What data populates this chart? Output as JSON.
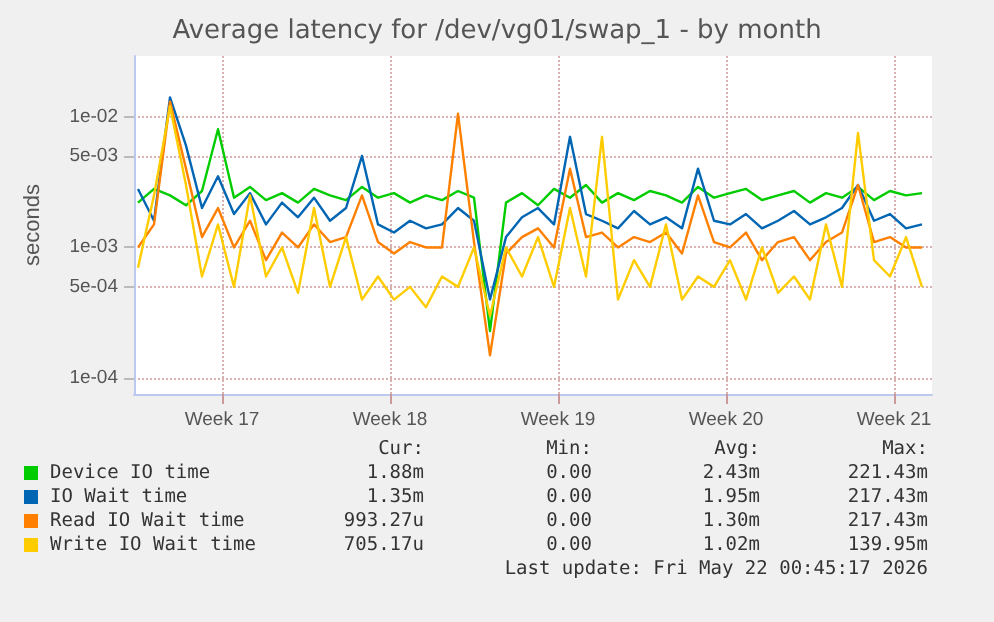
{
  "chart_data": {
    "type": "line",
    "title": "Average latency for /dev/vg01/swap_1 - by month",
    "ylabel": "seconds",
    "log": "y",
    "grid": true,
    "legend": "bottom",
    "marker": "none",
    "line_style": "solid",
    "xlim": [
      "2026-04-19T20:00",
      "2026-05-23T02:00"
    ],
    "xticks": [
      {
        "value": "2026-04-23T12:00",
        "label": "Week 17"
      },
      {
        "value": "2026-04-30T12:00",
        "label": "Week 18"
      },
      {
        "value": "2026-05-07T12:00",
        "label": "Week 19"
      },
      {
        "value": "2026-05-14T12:00",
        "label": "Week 20"
      },
      {
        "value": "2026-05-21T12:00",
        "label": "Week 21"
      }
    ],
    "ylim": [
      7.6e-05,
      0.029
    ],
    "yticks": [
      {
        "value": 0.0001,
        "label": "1e-04"
      },
      {
        "value": 0.0005,
        "label": "5e-04"
      },
      {
        "value": 0.001,
        "label": "1e-03"
      },
      {
        "value": 0.005,
        "label": "5e-03"
      },
      {
        "value": 0.01,
        "label": "1e-02"
      }
    ],
    "x": [
      "2026-04-20T00:00",
      "2026-04-20T16:00",
      "2026-04-21T08:00",
      "2026-04-22T00:00",
      "2026-04-22T16:00",
      "2026-04-23T08:00",
      "2026-04-24T00:00",
      "2026-04-24T16:00",
      "2026-04-25T08:00",
      "2026-04-26T00:00",
      "2026-04-26T16:00",
      "2026-04-27T08:00",
      "2026-04-28T00:00",
      "2026-04-28T16:00",
      "2026-04-29T08:00",
      "2026-04-30T00:00",
      "2026-04-30T16:00",
      "2026-05-01T08:00",
      "2026-05-02T00:00",
      "2026-05-02T16:00",
      "2026-05-03T08:00",
      "2026-05-04T00:00",
      "2026-05-04T16:00",
      "2026-05-05T08:00",
      "2026-05-06T00:00",
      "2026-05-06T16:00",
      "2026-05-07T08:00",
      "2026-05-08T00:00",
      "2026-05-08T16:00",
      "2026-05-09T08:00",
      "2026-05-10T00:00",
      "2026-05-10T16:00",
      "2026-05-11T08:00",
      "2026-05-12T00:00",
      "2026-05-12T16:00",
      "2026-05-13T08:00",
      "2026-05-14T00:00",
      "2026-05-14T16:00",
      "2026-05-15T08:00",
      "2026-05-16T00:00",
      "2026-05-16T16:00",
      "2026-05-17T08:00",
      "2026-05-18T00:00",
      "2026-05-18T16:00",
      "2026-05-19T08:00",
      "2026-05-20T00:00",
      "2026-05-20T16:00",
      "2026-05-21T08:00",
      "2026-05-22T00:00",
      "2026-05-22T16:00"
    ],
    "series": [
      {
        "name": "Device IO time",
        "color": "#00cc00",
        "values": [
          0.0022,
          0.0028,
          0.0025,
          0.0021,
          0.0027,
          0.008,
          0.0024,
          0.0029,
          0.0023,
          0.0026,
          0.0022,
          0.0028,
          0.0025,
          0.0023,
          0.0029,
          0.0024,
          0.0026,
          0.0022,
          0.0025,
          0.0023,
          0.0027,
          0.0024,
          0.00023,
          0.0022,
          0.0026,
          0.0021,
          0.0028,
          0.0024,
          0.003,
          0.0022,
          0.0026,
          0.0023,
          0.0027,
          0.0025,
          0.0022,
          0.0029,
          0.0024,
          0.0026,
          0.0028,
          0.0023,
          0.0025,
          0.0027,
          0.0022,
          0.0026,
          0.0024,
          0.0029,
          0.0023,
          0.0027,
          0.0025,
          0.0026
        ]
      },
      {
        "name": "IO Wait time",
        "color": "#0066b3",
        "values": [
          0.0028,
          0.0016,
          0.014,
          0.006,
          0.002,
          0.0035,
          0.0018,
          0.0026,
          0.0015,
          0.0022,
          0.0017,
          0.0024,
          0.0016,
          0.002,
          0.005,
          0.0015,
          0.0013,
          0.0016,
          0.0014,
          0.0015,
          0.002,
          0.0016,
          0.0004,
          0.0012,
          0.0017,
          0.002,
          0.0015,
          0.007,
          0.0018,
          0.0016,
          0.0014,
          0.0019,
          0.0015,
          0.0017,
          0.0014,
          0.004,
          0.0016,
          0.0015,
          0.0018,
          0.0014,
          0.0016,
          0.0019,
          0.0015,
          0.0017,
          0.002,
          0.003,
          0.0016,
          0.0018,
          0.0014,
          0.0015
        ]
      },
      {
        "name": "Read IO Wait time",
        "color": "#ff8000",
        "values": [
          0.001,
          0.0015,
          0.013,
          0.004,
          0.0012,
          0.002,
          0.001,
          0.0016,
          0.0008,
          0.0013,
          0.001,
          0.0015,
          0.0011,
          0.0012,
          0.0025,
          0.0011,
          0.0009,
          0.0011,
          0.001,
          0.001,
          0.0105,
          0.0011,
          0.00015,
          0.0009,
          0.0012,
          0.0014,
          0.001,
          0.004,
          0.0012,
          0.0013,
          0.001,
          0.0012,
          0.0011,
          0.0013,
          0.0009,
          0.0025,
          0.0011,
          0.001,
          0.0013,
          0.0008,
          0.0011,
          0.0012,
          0.0008,
          0.0011,
          0.0013,
          0.003,
          0.0011,
          0.0012,
          0.001,
          0.001
        ]
      },
      {
        "name": "Write IO Wait time",
        "color": "#ffcc00",
        "values": [
          0.0007,
          0.0025,
          0.012,
          0.003,
          0.0006,
          0.0015,
          0.0005,
          0.0025,
          0.0006,
          0.001,
          0.00045,
          0.002,
          0.0005,
          0.0012,
          0.0004,
          0.0006,
          0.0004,
          0.0005,
          0.00035,
          0.0006,
          0.0005,
          0.001,
          0.0003,
          0.001,
          0.0006,
          0.0012,
          0.0005,
          0.002,
          0.0006,
          0.007,
          0.0004,
          0.0008,
          0.0005,
          0.0015,
          0.0004,
          0.0006,
          0.0005,
          0.0008,
          0.0004,
          0.001,
          0.00045,
          0.0006,
          0.0004,
          0.0015,
          0.0005,
          0.0075,
          0.0008,
          0.0006,
          0.0012,
          0.0005
        ]
      }
    ],
    "annotations": [
      "Cur:",
      "Min:",
      "Avg:",
      "Max:",
      "1.88m",
      "0.00",
      "2.43m",
      "221.43m",
      "1.35m",
      "0.00",
      "1.95m",
      "217.43m",
      "993.27u",
      "0.00",
      "1.30m",
      "217.43m",
      "705.17u",
      "0.00",
      "1.02m",
      "139.95m",
      "Last update: Fri May 22 00:45:17 2026"
    ]
  }
}
